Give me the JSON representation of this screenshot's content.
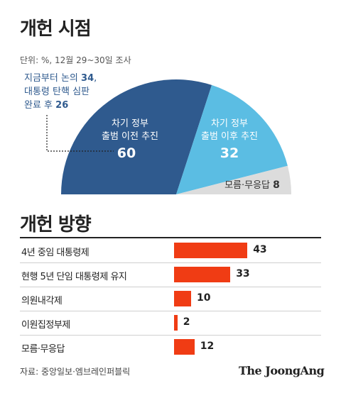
{
  "header": {
    "title": "개헌 시점",
    "unit_note": "단위: %, 12월 29~30일 조사"
  },
  "chart_data": [
    {
      "type": "pie",
      "title": "개헌 시점",
      "subtitle": "단위: %, 12월 29~30일 조사",
      "slices": [
        {
          "label_line1": "차기 정부",
          "label_line2": "출범 이전 추진",
          "value": 60,
          "color": "#2f5a8e"
        },
        {
          "label_line1": "차기 정부",
          "label_line2": "출범 이후 추진",
          "value": 32,
          "color": "#5bbde3"
        },
        {
          "label": "모름·무응답",
          "value": 8,
          "color": "#dcdcdc"
        }
      ],
      "annotation": {
        "line1_text": "지금부터 논의 ",
        "line1_value": "34",
        "line1_suffix": ",",
        "line2_text": "대통령 탄핵 심판",
        "line3_text": "완료 후 ",
        "line3_value": "26"
      }
    },
    {
      "type": "bar",
      "title": "개헌 방향",
      "categories": [
        "4년 중임 대통령제",
        "현행 5년 단임 대통령제 유지",
        "의원내각제",
        "이원집정부제",
        "모름·무응답"
      ],
      "values": [
        43,
        33,
        10,
        2,
        12
      ],
      "color": "#f03c14"
    }
  ],
  "footer": {
    "source": "자료: 중앙일보·엠브레인퍼블릭",
    "brand": "The JoongAng"
  }
}
